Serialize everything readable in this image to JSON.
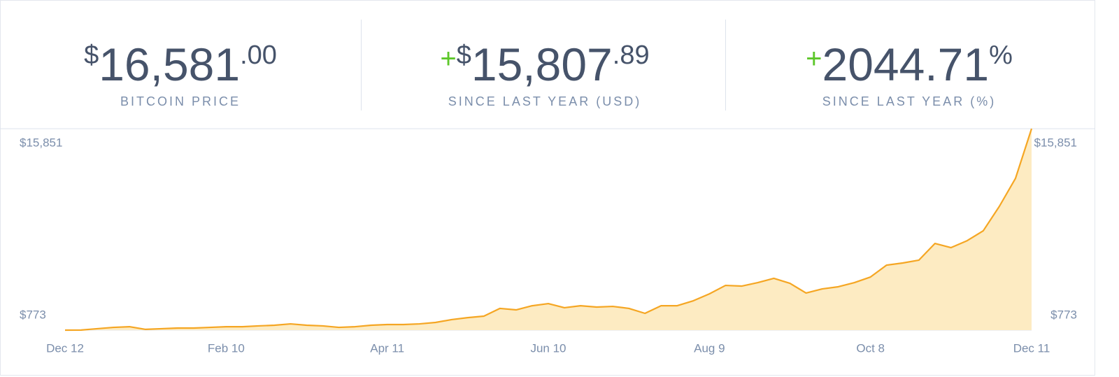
{
  "stats": [
    {
      "sign": null,
      "currency": "$",
      "main": "16,581",
      "sup": ".00",
      "label": "BITCOIN PRICE"
    },
    {
      "sign": "+",
      "currency": "$",
      "main": "15,807",
      "sup": ".89",
      "label": "SINCE LAST YEAR (USD)"
    },
    {
      "sign": "+",
      "currency": null,
      "main": "2044.71",
      "sup": "%",
      "label": "SINCE LAST YEAR (%)"
    }
  ],
  "chart_data": {
    "type": "area",
    "categories": [
      "Dec 12",
      null,
      null,
      null,
      null,
      null,
      null,
      null,
      null,
      null,
      "Feb 10",
      null,
      null,
      null,
      null,
      null,
      null,
      null,
      null,
      null,
      "Apr 11",
      null,
      null,
      null,
      null,
      null,
      null,
      null,
      null,
      null,
      "Jun 10",
      null,
      null,
      null,
      null,
      null,
      null,
      null,
      null,
      null,
      "Aug 9",
      null,
      null,
      null,
      null,
      null,
      null,
      null,
      null,
      null,
      "Oct 8",
      null,
      null,
      null,
      null,
      null,
      null,
      null,
      null,
      null,
      "Dec 11"
    ],
    "values": [
      773,
      780,
      880,
      980,
      1030,
      830,
      880,
      930,
      930,
      980,
      1030,
      1030,
      1090,
      1140,
      1240,
      1140,
      1090,
      980,
      1030,
      1140,
      1190,
      1190,
      1240,
      1350,
      1560,
      1710,
      1820,
      2400,
      2290,
      2600,
      2760,
      2450,
      2600,
      2500,
      2550,
      2400,
      2030,
      2600,
      2600,
      2970,
      3490,
      4120,
      4070,
      4330,
      4650,
      4280,
      3550,
      3860,
      4020,
      4330,
      4750,
      5640,
      5800,
      6010,
      7260,
      6950,
      7470,
      8210,
      10040,
      12130,
      15851
    ],
    "color": "#f5a623",
    "area_color": "#fdebc2",
    "ylim": [
      773,
      15851
    ],
    "yticks": [
      {
        "value": 773,
        "label": "$773"
      },
      {
        "value": 15851,
        "label": "$15,851"
      }
    ]
  }
}
